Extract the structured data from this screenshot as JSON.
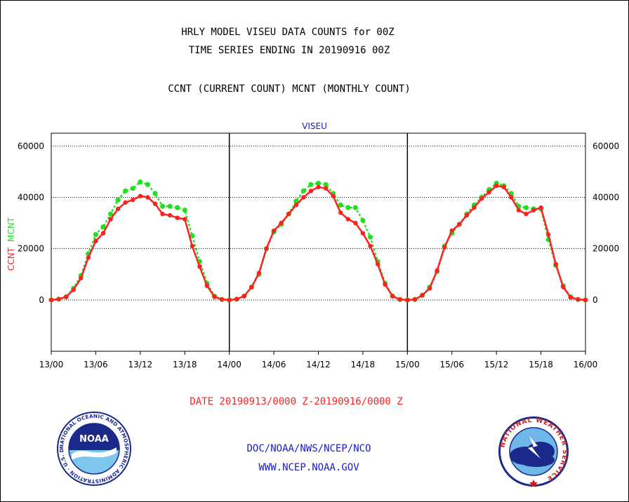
{
  "header": {
    "title_line1": "HRLY MODEL VISEU DATA COUNTS for 00Z",
    "title_line2": "TIME SERIES ENDING IN 20190916 00Z",
    "subtitle": "CCNT (CURRENT COUNT) MCNT (MONTHLY COUNT)"
  },
  "colors": {
    "ccnt": "#ff2020",
    "mcnt": "#20e020",
    "axis": "#000000",
    "blue_text": "#1a1ad0",
    "red_text": "#ff2020"
  },
  "chart_data": {
    "type": "line",
    "title": "VISEU",
    "ylabel_parts": [
      "CCNT",
      "MCNT"
    ],
    "x_range": [
      0,
      72
    ],
    "x_ticks": [
      0,
      6,
      12,
      18,
      24,
      30,
      36,
      42,
      48,
      54,
      60,
      66,
      72
    ],
    "x_tick_labels": [
      "13/00",
      "13/06",
      "13/12",
      "13/18",
      "14/00",
      "14/06",
      "14/12",
      "14/18",
      "15/00",
      "15/06",
      "15/12",
      "15/18",
      "16/00"
    ],
    "day_dividers": [
      24,
      48
    ],
    "ylim": [
      -20000,
      65000
    ],
    "y_ticks": [
      0,
      20000,
      40000,
      60000
    ],
    "y_tick_labels": [
      "0",
      "20000",
      "40000",
      "60000"
    ],
    "grid": true,
    "series": [
      {
        "name": "CCNT",
        "color": "#ff2020",
        "dashed": false,
        "x": [
          0,
          1,
          2,
          3,
          4,
          5,
          6,
          7,
          8,
          9,
          10,
          11,
          12,
          13,
          14,
          15,
          16,
          17,
          18,
          19,
          20,
          21,
          22,
          23,
          24,
          25,
          26,
          27,
          28,
          29,
          30,
          31,
          32,
          33,
          34,
          35,
          36,
          37,
          38,
          39,
          40,
          41,
          42,
          43,
          44,
          45,
          46,
          47,
          48,
          49,
          50,
          51,
          52,
          53,
          54,
          55,
          56,
          57,
          58,
          59,
          60,
          61,
          62,
          63,
          64,
          65,
          66,
          67,
          68,
          69,
          70,
          71,
          72
        ],
        "values": [
          0,
          300,
          1200,
          4000,
          8500,
          16500,
          23000,
          26000,
          31500,
          35500,
          38000,
          39000,
          40500,
          40000,
          37500,
          33500,
          33000,
          32000,
          31500,
          21000,
          13000,
          5500,
          1200,
          200,
          0,
          300,
          1500,
          5000,
          10500,
          20000,
          27000,
          30000,
          33500,
          37000,
          40000,
          42500,
          44000,
          43500,
          40500,
          34000,
          31500,
          30000,
          26000,
          21000,
          14000,
          6000,
          1500,
          200,
          0,
          200,
          1800,
          4500,
          11500,
          20500,
          27000,
          29500,
          33000,
          36000,
          39500,
          42000,
          44500,
          44000,
          40000,
          35000,
          33500,
          35000,
          36000,
          25500,
          14000,
          5000,
          1000,
          200,
          0
        ]
      },
      {
        "name": "MCNT",
        "color": "#20e020",
        "dashed": true,
        "x": [
          0,
          1,
          2,
          3,
          4,
          5,
          6,
          7,
          8,
          9,
          10,
          11,
          12,
          13,
          14,
          15,
          16,
          17,
          18,
          19,
          20,
          21,
          22,
          23,
          24,
          25,
          26,
          27,
          28,
          29,
          30,
          31,
          32,
          33,
          34,
          35,
          36,
          37,
          38,
          39,
          40,
          41,
          42,
          43,
          44,
          45,
          46,
          47,
          48,
          49,
          50,
          51,
          52,
          53,
          54,
          55,
          56,
          57,
          58,
          59,
          60,
          61,
          62,
          63,
          64,
          65,
          66,
          67,
          68,
          69,
          70,
          71,
          72
        ],
        "values": [
          0,
          300,
          1200,
          4500,
          9500,
          18000,
          25500,
          28500,
          33500,
          39000,
          42500,
          43500,
          46000,
          45000,
          41500,
          36500,
          36500,
          36000,
          35000,
          25000,
          15000,
          6500,
          1500,
          200,
          0,
          300,
          1500,
          5000,
          10000,
          20000,
          26500,
          29500,
          33500,
          38500,
          42500,
          45000,
          45500,
          45000,
          41500,
          37000,
          36000,
          36000,
          31000,
          24500,
          15000,
          6500,
          1500,
          200,
          0,
          200,
          1800,
          5000,
          11000,
          21000,
          26000,
          29500,
          33500,
          37000,
          40000,
          43000,
          45500,
          44500,
          41500,
          36500,
          36000,
          35500,
          35500,
          23500,
          13500,
          5500,
          1200,
          200,
          0
        ]
      }
    ]
  },
  "footer": {
    "date_range": "DATE 20190913/0000 Z-20190916/0000 Z",
    "org": "DOC/NOAA/NWS/NCEP/NCO",
    "url": "WWW.NCEP.NOAA.GOV",
    "noaa_logo_text": "NOAA",
    "noaa_ring_text": "NATIONAL OCEANIC AND ATMOSPHERIC ADMINISTRATION · U.S. DEPARTMENT OF COMMERCE ·",
    "nws_ring_text": "NATIONAL WEATHER SERVICE"
  }
}
